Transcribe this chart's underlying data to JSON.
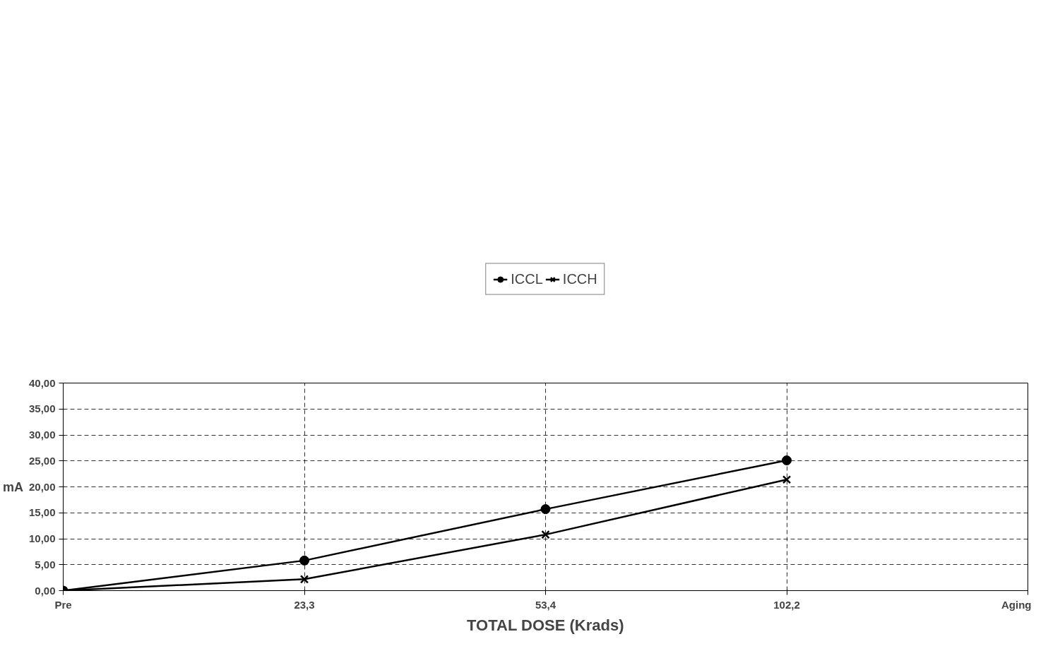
{
  "chart_data": {
    "type": "line",
    "xlabel": "TOTAL DOSE (Krads)",
    "ylabel": "mA",
    "categories": [
      "Pre",
      "23,3",
      "53,4",
      "102,2",
      "Aging"
    ],
    "series": [
      {
        "name": "ICCL",
        "color": "#000000",
        "marker": "circle",
        "values": [
          0,
          5.8,
          15.7,
          25.1,
          null
        ]
      },
      {
        "name": "ICCH",
        "color": "#000000",
        "marker": "cross",
        "values": [
          0,
          2.2,
          10.8,
          21.4,
          null
        ]
      }
    ],
    "ylim": [
      0,
      40
    ],
    "yticks": [
      {
        "value": 0,
        "label": "0,00"
      },
      {
        "value": 5,
        "label": "5,00"
      },
      {
        "value": 10,
        "label": "10,00"
      },
      {
        "value": 15,
        "label": "15,00"
      },
      {
        "value": 20,
        "label": "20,00"
      },
      {
        "value": 25,
        "label": "25,00"
      },
      {
        "value": 30,
        "label": "30,00"
      },
      {
        "value": 35,
        "label": "35,00"
      },
      {
        "value": 40,
        "label": "40,00"
      }
    ],
    "grid": true,
    "legend": "top",
    "line_style": "solid"
  }
}
